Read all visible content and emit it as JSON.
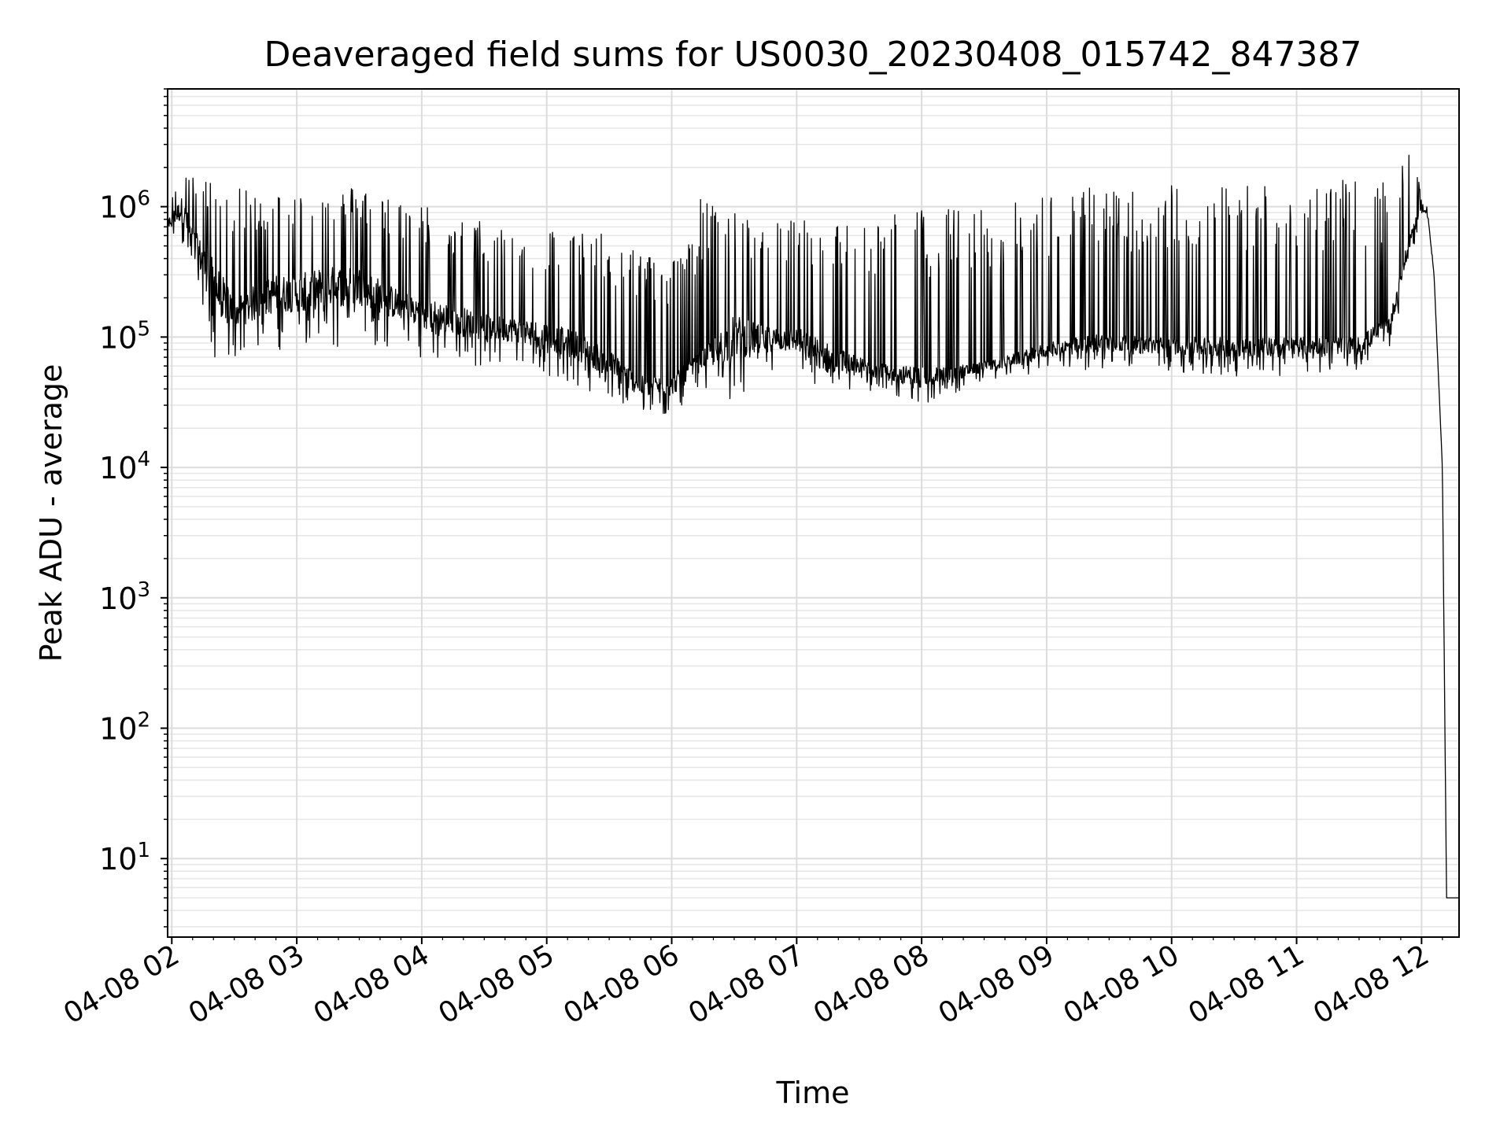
{
  "chart_data": {
    "type": "line",
    "title": "Deaveraged field sums for US0030_20230408_015742_847387",
    "xlabel": "Time",
    "ylabel": "Peak ADU - average",
    "yscale": "log",
    "ylim": [
      2.5,
      8000000
    ],
    "xlim": [
      "2023-04-08 01:58",
      "2023-04-08 12:18"
    ],
    "grid": true,
    "x_ticks": [
      {
        "t": "2023-04-08 02:00",
        "label": "04-08 02"
      },
      {
        "t": "2023-04-08 03:00",
        "label": "04-08 03"
      },
      {
        "t": "2023-04-08 04:00",
        "label": "04-08 04"
      },
      {
        "t": "2023-04-08 05:00",
        "label": "04-08 05"
      },
      {
        "t": "2023-04-08 06:00",
        "label": "04-08 06"
      },
      {
        "t": "2023-04-08 07:00",
        "label": "04-08 07"
      },
      {
        "t": "2023-04-08 08:00",
        "label": "04-08 08"
      },
      {
        "t": "2023-04-08 09:00",
        "label": "04-08 09"
      },
      {
        "t": "2023-04-08 10:00",
        "label": "04-08 10"
      },
      {
        "t": "2023-04-08 11:00",
        "label": "04-08 11"
      },
      {
        "t": "2023-04-08 12:00",
        "label": "04-08 12"
      }
    ],
    "y_ticks": [
      {
        "value": 10,
        "base": "10",
        "exp": "1"
      },
      {
        "value": 100,
        "base": "10",
        "exp": "2"
      },
      {
        "value": 1000,
        "base": "10",
        "exp": "3"
      },
      {
        "value": 10000,
        "base": "10",
        "exp": "4"
      },
      {
        "value": 100000,
        "base": "10",
        "exp": "5"
      },
      {
        "value": 1000000,
        "base": "10",
        "exp": "6"
      }
    ],
    "series": [
      {
        "color": "#000000",
        "x": [
          "2023-04-08 01:58",
          "2023-04-08 02:05",
          "2023-04-08 02:10",
          "2023-04-08 02:20",
          "2023-04-08 02:30",
          "2023-04-08 02:40",
          "2023-04-08 02:50",
          "2023-04-08 03:00",
          "2023-04-08 03:15",
          "2023-04-08 03:30",
          "2023-04-08 03:45",
          "2023-04-08 04:00",
          "2023-04-08 04:15",
          "2023-04-08 04:30",
          "2023-04-08 04:45",
          "2023-04-08 05:00",
          "2023-04-08 05:15",
          "2023-04-08 05:30",
          "2023-04-08 05:45",
          "2023-04-08 06:00",
          "2023-04-08 06:15",
          "2023-04-08 06:30",
          "2023-04-08 06:45",
          "2023-04-08 07:00",
          "2023-04-08 07:15",
          "2023-04-08 07:30",
          "2023-04-08 07:45",
          "2023-04-08 08:00",
          "2023-04-08 08:15",
          "2023-04-08 08:30",
          "2023-04-08 08:45",
          "2023-04-08 09:00",
          "2023-04-08 09:15",
          "2023-04-08 09:30",
          "2023-04-08 09:45",
          "2023-04-08 10:00",
          "2023-04-08 10:15",
          "2023-04-08 10:30",
          "2023-04-08 10:45",
          "2023-04-08 11:00",
          "2023-04-08 11:15",
          "2023-04-08 11:30",
          "2023-04-08 11:45",
          "2023-04-08 11:55",
          "2023-04-08 12:00",
          "2023-04-08 12:03",
          "2023-04-08 12:06",
          "2023-04-08 12:10",
          "2023-04-08 12:12",
          "2023-04-08 12:18"
        ],
        "base": [
          800000,
          1200000,
          700000,
          400000,
          200000,
          250000,
          300000,
          300000,
          350000,
          350000,
          250000,
          200000,
          180000,
          150000,
          140000,
          130000,
          110000,
          80000,
          50000,
          50000,
          80000,
          150000,
          120000,
          120000,
          90000,
          70000,
          60000,
          60000,
          60000,
          65000,
          75000,
          90000,
          100000,
          110000,
          100000,
          100000,
          100000,
          100000,
          100000,
          100000,
          100000,
          100000,
          150000,
          700000,
          1000000,
          900000,
          300000,
          10000,
          5,
          5
        ],
        "peak": [
          1000000,
          2000000,
          1700000,
          1600000,
          1400000,
          1300000,
          1300000,
          1300000,
          1300000,
          1500000,
          1200000,
          1100000,
          800000,
          800000,
          700000,
          700000,
          700000,
          600000,
          500000,
          400000,
          1300000,
          900000,
          800000,
          900000,
          700000,
          900000,
          1000000,
          1000000,
          1000000,
          1000000,
          1100000,
          1300000,
          1400000,
          1500000,
          1500000,
          1500000,
          1500000,
          1600000,
          1600000,
          1600000,
          1600000,
          1600000,
          1500000,
          4000000,
          1100000,
          1000000,
          300000,
          10000,
          5,
          5
        ],
        "trough": [
          600000,
          500000,
          300000,
          60000,
          70000,
          70000,
          80000,
          80000,
          80000,
          90000,
          80000,
          70000,
          60000,
          60000,
          60000,
          50000,
          40000,
          30000,
          25000,
          25000,
          40000,
          30000,
          50000,
          50000,
          30000,
          40000,
          35000,
          30000,
          35000,
          45000,
          50000,
          55000,
          55000,
          55000,
          55000,
          55000,
          50000,
          50000,
          50000,
          50000,
          55000,
          55000,
          80000,
          400000,
          900000,
          800000,
          300000,
          10000,
          5,
          5
        ]
      }
    ]
  }
}
